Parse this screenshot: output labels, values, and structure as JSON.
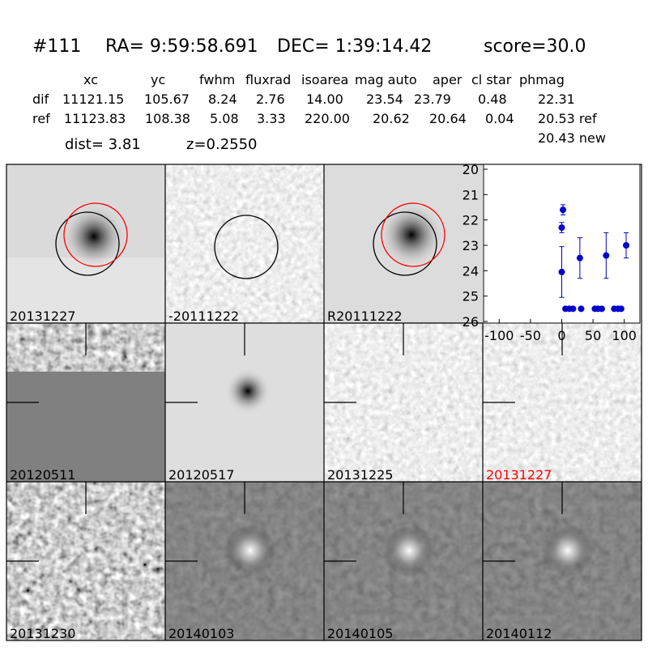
{
  "header": {
    "id": "#111",
    "ra": "RA= 9:59:58.691",
    "dec": "DEC= 1:39:14.42",
    "score": "score=30.0"
  },
  "table": {
    "columns": [
      "xc",
      "yc",
      "fwhm",
      "fluxrad",
      "isoarea",
      "mag auto",
      "aper",
      "cl star",
      "phmag"
    ],
    "rows": [
      [
        "dif",
        "11121.15",
        "105.67",
        "8.24",
        "2.76",
        "14.00",
        "23.54",
        "23.79",
        "0.48",
        "22.31"
      ],
      [
        "ref",
        "11123.83",
        "108.38",
        "5.08",
        "3.33",
        "220.00",
        "20.62",
        "20.64",
        "0.04",
        "20.53 ref"
      ]
    ],
    "extra": "20.43 new"
  },
  "dist": "dist=  3.81",
  "z": "z=0.2550",
  "stamps": [
    "20131227",
    "-20111222",
    "R20111222",
    "20120511",
    "20120517",
    "20131225",
    "20131227",
    "20131230",
    "20140103",
    "20140105",
    "20140112"
  ],
  "chart_data": {
    "type": "scatter",
    "color": "#0000cc",
    "x": [
      0,
      0,
      2,
      6,
      12,
      18,
      29,
      31,
      53,
      58,
      64,
      71,
      84,
      90,
      95,
      103
    ],
    "values": [
      24.05,
      22.3,
      21.6,
      25.5,
      25.5,
      25.5,
      23.5,
      25.5,
      25.5,
      25.5,
      25.5,
      23.4,
      25.5,
      25.5,
      25.5,
      23.0
    ],
    "errors": [
      1.0,
      0.2,
      0.2,
      null,
      null,
      null,
      0.8,
      null,
      null,
      null,
      null,
      0.9,
      null,
      null,
      null,
      0.5
    ],
    "xlim": [
      -125,
      125
    ],
    "xticks": [
      -100,
      -50,
      0,
      50,
      100
    ],
    "ylim": [
      20,
      26
    ],
    "yticks": [
      20,
      21,
      22,
      23,
      24,
      25,
      26
    ],
    "y_inverted": true
  }
}
